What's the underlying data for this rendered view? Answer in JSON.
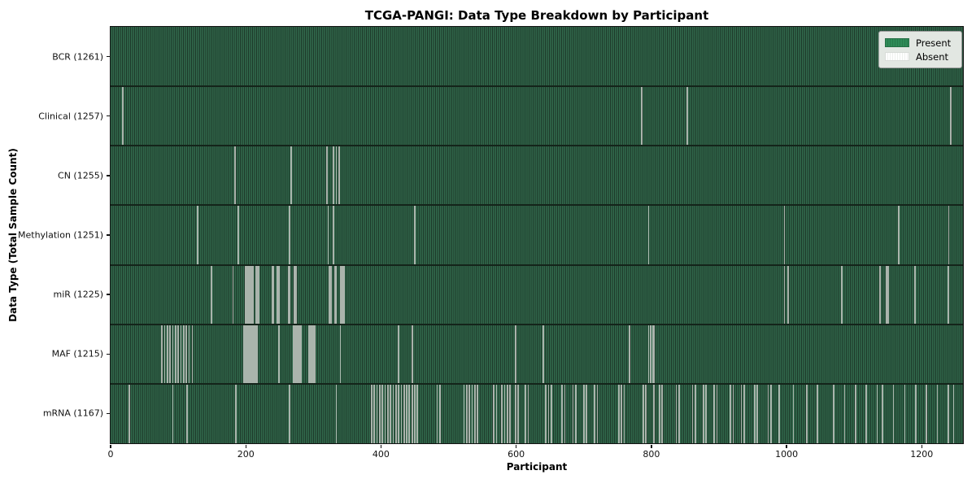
{
  "figure": {
    "title": "TCGA-PANGI: Data Type Breakdown by Participant",
    "xlabel": "Participant",
    "ylabel": "Data Type (Total Sample Count)"
  },
  "legend": {
    "items": [
      {
        "label": "Present",
        "color": "#2e8b57"
      },
      {
        "label": "Absent",
        "color": "#ffffff"
      }
    ]
  },
  "colors": {
    "present_fill": "#2e8b57",
    "bar_stripe_green": "#31694c",
    "bar_edge_dark": "#1d3829",
    "absent_line": "#aab4ac",
    "row_divider": "#14241a",
    "spine": "#121212",
    "legend_bg": "#e2e7e2",
    "legend_border": "#9c9c9c",
    "background": "#ffffff"
  },
  "chart_data": {
    "type": "heatmap",
    "title": "TCGA-PANGI: Data Type Breakdown by Participant",
    "xlabel": "Participant",
    "ylabel": "Data Type (Total Sample Count)",
    "legend": [
      "Present",
      "Absent"
    ],
    "legend_position": "upper right",
    "grid": false,
    "xlim": [
      0,
      1261
    ],
    "x_ticks": [
      0,
      200,
      400,
      600,
      800,
      1000,
      1200
    ],
    "n_participants": 1261,
    "rows": [
      {
        "label": "BCR (1261)",
        "data_type": "BCR",
        "total": 1261,
        "absent_count": 0,
        "absent_participants": []
      },
      {
        "label": "Clinical (1257)",
        "data_type": "Clinical",
        "total": 1257,
        "absent_count": 4,
        "absent_participants": [
          18,
          786,
          853,
          1243
        ]
      },
      {
        "label": "CN (1255)",
        "data_type": "CN",
        "total": 1255,
        "absent_count": 6,
        "absent_participants": [
          184,
          267,
          320,
          330,
          334,
          338
        ]
      },
      {
        "label": "Methylation (1251)",
        "data_type": "Methylation",
        "total": 1251,
        "absent_count": 10,
        "absent_participants": [
          129,
          189,
          265,
          322,
          330,
          450,
          796,
          997,
          1166,
          1240
        ]
      },
      {
        "label": "miR (1225)",
        "data_type": "miR",
        "total": 1225,
        "absent_count": 36,
        "absent_participants": [
          149,
          181,
          199,
          201,
          203,
          205,
          207,
          209,
          211,
          215,
          217,
          219,
          239,
          241,
          247,
          249,
          263,
          265,
          272,
          274,
          324,
          326,
          332,
          334,
          340,
          342,
          344,
          346,
          997,
          1002,
          1082,
          1138,
          1148,
          1150,
          1190,
          1239
        ]
      },
      {
        "label": "MAF (1215)",
        "data_type": "MAF",
        "total": 1215,
        "absent_count": 46,
        "absent_participants": [
          76,
          80,
          84,
          88,
          92,
          96,
          100,
          104,
          108,
          112,
          116,
          121,
          197,
          199,
          201,
          203,
          205,
          207,
          209,
          211,
          213,
          215,
          217,
          249,
          270,
          272,
          274,
          276,
          278,
          280,
          282,
          294,
          296,
          298,
          300,
          302,
          340,
          426,
          446,
          599,
          640,
          768,
          796,
          799,
          802,
          804
        ]
      },
      {
        "label": "mRNA (1167)",
        "data_type": "mRNA",
        "total": 1167,
        "absent_count": 94,
        "absent_participants": [
          28,
          92,
          113,
          185,
          265,
          334,
          386,
          390,
          394,
          398,
          402,
          406,
          410,
          414,
          418,
          422,
          426,
          430,
          434,
          438,
          442,
          446,
          450,
          454,
          483,
          487,
          523,
          527,
          531,
          535,
          539,
          543,
          567,
          571,
          579,
          583,
          587,
          591,
          599,
          603,
          614,
          618,
          644,
          648,
          652,
          668,
          672,
          684,
          688,
          700,
          704,
          716,
          720,
          752,
          756,
          760,
          788,
          792,
          804,
          812,
          816,
          837,
          841,
          861,
          865,
          877,
          881,
          893,
          897,
          917,
          921,
          933,
          937,
          953,
          957,
          973,
          977,
          989,
          1010,
          1030,
          1046,
          1070,
          1086,
          1102,
          1118,
          1134,
          1142,
          1158,
          1175,
          1191,
          1207,
          1223,
          1239,
          1247
        ]
      }
    ]
  }
}
